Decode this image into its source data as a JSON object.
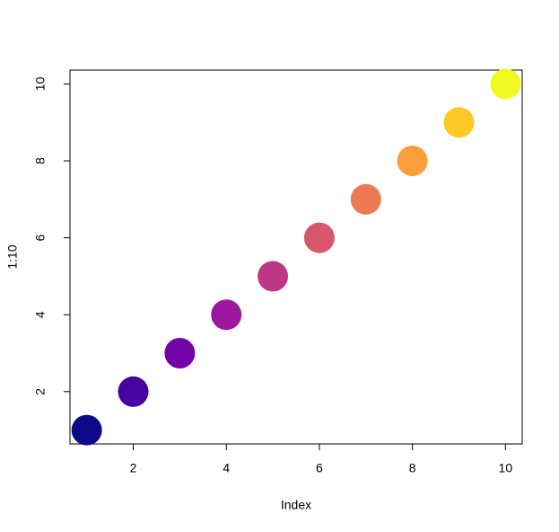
{
  "chart_data": {
    "type": "scatter",
    "xlabel": "Index",
    "ylabel": "1:10",
    "x": [
      1,
      2,
      3,
      4,
      5,
      6,
      7,
      8,
      9,
      10
    ],
    "values": [
      1,
      2,
      3,
      4,
      5,
      6,
      7,
      8,
      9,
      10
    ],
    "colors": [
      "#0D0887",
      "#47039F",
      "#7301A8",
      "#9C179E",
      "#BD3786",
      "#D8576B",
      "#ED7953",
      "#FA9E3B",
      "#FDC926",
      "#F0F921"
    ],
    "xlim": [
      0.64,
      10.36
    ],
    "ylim": [
      0.64,
      10.36
    ],
    "xticks": [
      2,
      4,
      6,
      8,
      10
    ],
    "yticks": [
      2,
      4,
      6,
      8,
      10
    ],
    "grid": false
  }
}
